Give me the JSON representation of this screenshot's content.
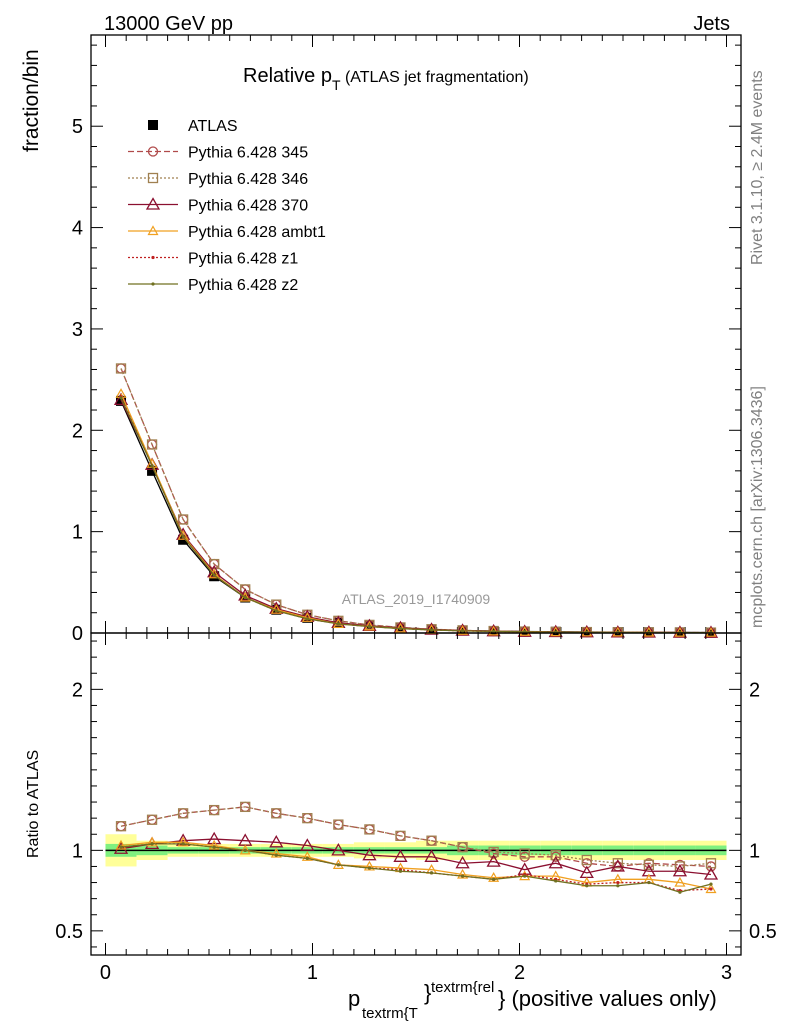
{
  "header": {
    "left": "13000 GeV pp",
    "right": "Jets"
  },
  "side_text": {
    "top": "Rivet 3.1.10, ≥ 2.4M events",
    "bottom": "mcplots.cern.ch [arXiv:1306.3436]"
  },
  "watermark": "ATLAS_2019_I1740909",
  "title": {
    "main": "Relative p",
    "sub": "T",
    "suffix": " (ATLAS jet fragmentation)"
  },
  "axis": {
    "ylabel_top": "fraction/bin",
    "ylabel_bottom": "Ratio to ATLAS",
    "xlabel": "p",
    "xlabel_sub": "textrm{T",
    "xlabel_sup": "textrm{rel",
    "xlabel_brace": "}",
    "xlabel_tail": "} (positive values only)"
  },
  "colors": {
    "ATLAS": "#000000",
    "345": "#b04a4a",
    "346": "#a08050",
    "370": "#8b1030",
    "ambt1": "#f0a020",
    "z1": "#c02020",
    "z2": "#707020",
    "band_inner": "#7ff07f",
    "band_outer": "#ffff99"
  },
  "chart_data": [
    {
      "type": "line",
      "title": "Relative pT (ATLAS jet fragmentation)",
      "ylabel": "fraction/bin",
      "xlim": [
        -0.07,
        3.07
      ],
      "ylim": [
        0,
        5.9
      ],
      "yticks": [
        0,
        1,
        2,
        3,
        4,
        5
      ],
      "xticks": [
        0,
        1,
        2,
        3
      ],
      "x": [
        0.075,
        0.225,
        0.375,
        0.525,
        0.675,
        0.825,
        0.975,
        1.125,
        1.275,
        1.425,
        1.575,
        1.725,
        1.875,
        2.025,
        2.175,
        2.325,
        2.475,
        2.625,
        2.775,
        2.925
      ],
      "series": [
        {
          "name": "ATLAS",
          "key": "ATLAS",
          "values": [
            2.29,
            1.6,
            0.92,
            0.56,
            0.35,
            0.23,
            0.15,
            0.1,
            0.07,
            0.05,
            0.035,
            0.025,
            0.02,
            0.015,
            0.012,
            0.01,
            0.008,
            0.007,
            0.006,
            0.005
          ]
        },
        {
          "name": "Pythia 6.428 345",
          "key": "345",
          "values": [
            2.61,
            1.86,
            1.12,
            0.68,
            0.43,
            0.28,
            0.18,
            0.12,
            0.08,
            0.055,
            0.037,
            0.026,
            0.019,
            0.014,
            0.011,
            0.009,
            0.007,
            0.006,
            0.005,
            0.004
          ]
        },
        {
          "name": "Pythia 6.428 346",
          "key": "346",
          "values": [
            2.61,
            1.86,
            1.12,
            0.68,
            0.43,
            0.28,
            0.18,
            0.12,
            0.08,
            0.055,
            0.037,
            0.026,
            0.019,
            0.014,
            0.011,
            0.009,
            0.007,
            0.006,
            0.005,
            0.004
          ]
        },
        {
          "name": "Pythia 6.428 370",
          "key": "370",
          "values": [
            2.3,
            1.66,
            0.97,
            0.6,
            0.37,
            0.24,
            0.16,
            0.1,
            0.07,
            0.05,
            0.034,
            0.024,
            0.018,
            0.013,
            0.01,
            0.008,
            0.006,
            0.005,
            0.004,
            0.003
          ]
        },
        {
          "name": "Pythia 6.428 ambt1",
          "key": "ambt1",
          "values": [
            2.36,
            1.67,
            0.96,
            0.58,
            0.35,
            0.23,
            0.15,
            0.09,
            0.065,
            0.045,
            0.031,
            0.022,
            0.016,
            0.012,
            0.009,
            0.007,
            0.006,
            0.005,
            0.004,
            0.003
          ]
        },
        {
          "name": "Pythia 6.428 z1",
          "key": "z1",
          "values": [
            2.33,
            1.65,
            0.95,
            0.57,
            0.35,
            0.22,
            0.14,
            0.09,
            0.063,
            0.044,
            0.03,
            0.021,
            0.016,
            0.012,
            0.009,
            0.007,
            0.006,
            0.005,
            0.004,
            0.003
          ]
        },
        {
          "name": "Pythia 6.428 z2",
          "key": "z2",
          "values": [
            2.32,
            1.65,
            0.95,
            0.57,
            0.35,
            0.22,
            0.14,
            0.09,
            0.063,
            0.044,
            0.03,
            0.021,
            0.016,
            0.012,
            0.009,
            0.007,
            0.006,
            0.005,
            0.004,
            0.003
          ]
        }
      ]
    },
    {
      "type": "line",
      "ylabel": "Ratio to ATLAS",
      "xlabel": "p textrm{T}^{textrm{rel}} (positive values only)",
      "xlim": [
        -0.07,
        3.07
      ],
      "ylim": [
        0.35,
        2.35
      ],
      "yticks": [
        0.5,
        1,
        2
      ],
      "xticks": [
        0,
        1,
        2,
        3
      ],
      "x": [
        0.075,
        0.225,
        0.375,
        0.525,
        0.675,
        0.825,
        0.975,
        1.125,
        1.275,
        1.425,
        1.575,
        1.725,
        1.875,
        2.025,
        2.175,
        2.325,
        2.475,
        2.625,
        2.775,
        2.925
      ],
      "band_inner": [
        0.04,
        0.03,
        0.02,
        0.02,
        0.02,
        0.02,
        0.02,
        0.02,
        0.02,
        0.02,
        0.02,
        0.03,
        0.03,
        0.03,
        0.03,
        0.03,
        0.03,
        0.03,
        0.03,
        0.03
      ],
      "band_outer": [
        0.1,
        0.06,
        0.04,
        0.04,
        0.04,
        0.04,
        0.04,
        0.04,
        0.05,
        0.05,
        0.06,
        0.06,
        0.06,
        0.06,
        0.06,
        0.06,
        0.06,
        0.06,
        0.06,
        0.06
      ],
      "series": [
        {
          "name": "Pythia 6.428 345",
          "key": "345",
          "values": [
            1.15,
            1.19,
            1.23,
            1.25,
            1.27,
            1.23,
            1.2,
            1.16,
            1.13,
            1.09,
            1.06,
            1.02,
            0.98,
            0.96,
            0.96,
            0.92,
            0.9,
            0.92,
            0.91,
            0.9
          ]
        },
        {
          "name": "Pythia 6.428 346",
          "key": "346",
          "values": [
            1.15,
            1.19,
            1.23,
            1.25,
            1.27,
            1.23,
            1.2,
            1.16,
            1.13,
            1.09,
            1.06,
            1.02,
            0.99,
            0.98,
            0.97,
            0.94,
            0.92,
            0.91,
            0.9,
            0.92
          ]
        },
        {
          "name": "Pythia 6.428 370",
          "key": "370",
          "values": [
            1.01,
            1.04,
            1.06,
            1.07,
            1.06,
            1.05,
            1.03,
            1.0,
            0.97,
            0.96,
            0.96,
            0.92,
            0.93,
            0.88,
            0.92,
            0.86,
            0.9,
            0.87,
            0.87,
            0.85
          ]
        },
        {
          "name": "Pythia 6.428 ambt1",
          "key": "ambt1",
          "values": [
            1.03,
            1.05,
            1.05,
            1.03,
            1.0,
            0.98,
            0.96,
            0.91,
            0.9,
            0.89,
            0.88,
            0.85,
            0.83,
            0.84,
            0.84,
            0.8,
            0.82,
            0.82,
            0.8,
            0.76
          ]
        },
        {
          "name": "Pythia 6.428 z1",
          "key": "z1",
          "values": [
            1.02,
            1.04,
            1.04,
            1.02,
            1.0,
            0.97,
            0.95,
            0.91,
            0.89,
            0.88,
            0.86,
            0.84,
            0.82,
            0.85,
            0.82,
            0.79,
            0.8,
            0.8,
            0.75,
            0.76
          ]
        },
        {
          "name": "Pythia 6.428 z2",
          "key": "z2",
          "values": [
            1.02,
            1.04,
            1.04,
            1.02,
            1.0,
            0.97,
            0.95,
            0.91,
            0.89,
            0.87,
            0.86,
            0.84,
            0.82,
            0.84,
            0.81,
            0.78,
            0.78,
            0.8,
            0.74,
            0.79
          ]
        }
      ]
    }
  ]
}
